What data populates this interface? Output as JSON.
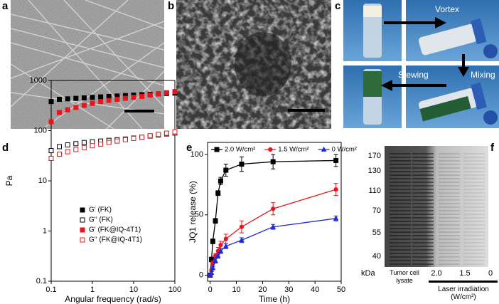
{
  "labels": [
    "a",
    "b",
    "c",
    "d",
    "e",
    "f"
  ],
  "panel_c": {
    "vortex": "Vortex",
    "stewing": "Stewing",
    "mixing": "Mixing"
  },
  "panel_f": {
    "markers": [
      "170",
      "130",
      "110",
      "70",
      "55",
      "40"
    ],
    "unit": "kDa",
    "lanes": [
      "Tumor cell lysate",
      "2.0",
      "1.5",
      "0"
    ],
    "group_label": "Laser irradiation (W/cm²)"
  },
  "chart_data": [
    {
      "type": "scatter",
      "xlabel": "Angular frequency (rad/s)",
      "ylabel": "Pa",
      "xscale": "log",
      "yscale": "log",
      "xlim": [
        0.1,
        100
      ],
      "ylim": [
        0.1,
        1000
      ],
      "xticks": [
        0.1,
        1,
        10,
        100
      ],
      "yticks": [
        0.1,
        1,
        10,
        100,
        1000
      ],
      "legend": "lower center",
      "x": [
        0.1,
        0.158,
        0.251,
        0.398,
        0.631,
        1,
        1.585,
        2.512,
        3.981,
        6.31,
        10,
        15.85,
        25.12,
        39.81,
        63.1,
        100
      ],
      "series": [
        {
          "name": "G' (FK)",
          "color": "#000000",
          "marker": "filled",
          "values": [
            380,
            420,
            430,
            440,
            450,
            460,
            470,
            480,
            490,
            500,
            510,
            520,
            530,
            540,
            550,
            560
          ]
        },
        {
          "name": "G'' (FK)",
          "color": "#000000",
          "marker": "open",
          "values": [
            40,
            48,
            52,
            55,
            58,
            60,
            62,
            64,
            66,
            68,
            71,
            74,
            78,
            82,
            86,
            90
          ]
        },
        {
          "name": "G' (FK@IQ-4T1)",
          "color": "#e8161b",
          "marker": "filled",
          "values": [
            150,
            230,
            260,
            290,
            320,
            350,
            380,
            400,
            420,
            440,
            460,
            480,
            510,
            540,
            570,
            600
          ]
        },
        {
          "name": "G'' (FK@IQ-4T1)",
          "color": "#e8161b",
          "marker": "open",
          "values": [
            28,
            34,
            38,
            42,
            46,
            50,
            54,
            58,
            62,
            66,
            70,
            74,
            79,
            84,
            89,
            95
          ]
        }
      ]
    },
    {
      "type": "line",
      "xlabel": "Time (h)",
      "ylabel": "JQ1 release (%)",
      "xlim": [
        -1,
        50
      ],
      "ylim": [
        -5,
        110
      ],
      "xticks": [
        0,
        10,
        20,
        30,
        40,
        50
      ],
      "yticks": [
        0,
        50,
        100
      ],
      "legend": "top",
      "x": [
        0,
        0.5,
        1,
        2,
        3,
        4,
        6,
        12,
        24,
        48
      ],
      "series": [
        {
          "name": "2.0 W/cm²",
          "color": "#000000",
          "marker": "square",
          "values": [
            0,
            13,
            28,
            45,
            68,
            78,
            87,
            92,
            94,
            95
          ],
          "errors": [
            1,
            2,
            2,
            2,
            2,
            3,
            5,
            6,
            6,
            5
          ]
        },
        {
          "name": "1.5 W/cm²",
          "color": "#e8161b",
          "marker": "circle",
          "values": [
            0,
            4,
            10,
            16,
            20,
            25,
            30,
            40,
            55,
            71
          ],
          "errors": [
            1,
            1,
            2,
            2,
            3,
            3,
            4,
            5,
            5,
            5
          ]
        },
        {
          "name": "0 W/cm²",
          "color": "#1f2bd6",
          "marker": "triangle",
          "values": [
            0,
            2,
            6,
            12,
            16,
            20,
            24,
            29,
            40,
            47
          ],
          "errors": [
            1,
            1,
            1,
            2,
            2,
            2,
            2,
            2,
            2,
            2
          ]
        }
      ]
    }
  ]
}
